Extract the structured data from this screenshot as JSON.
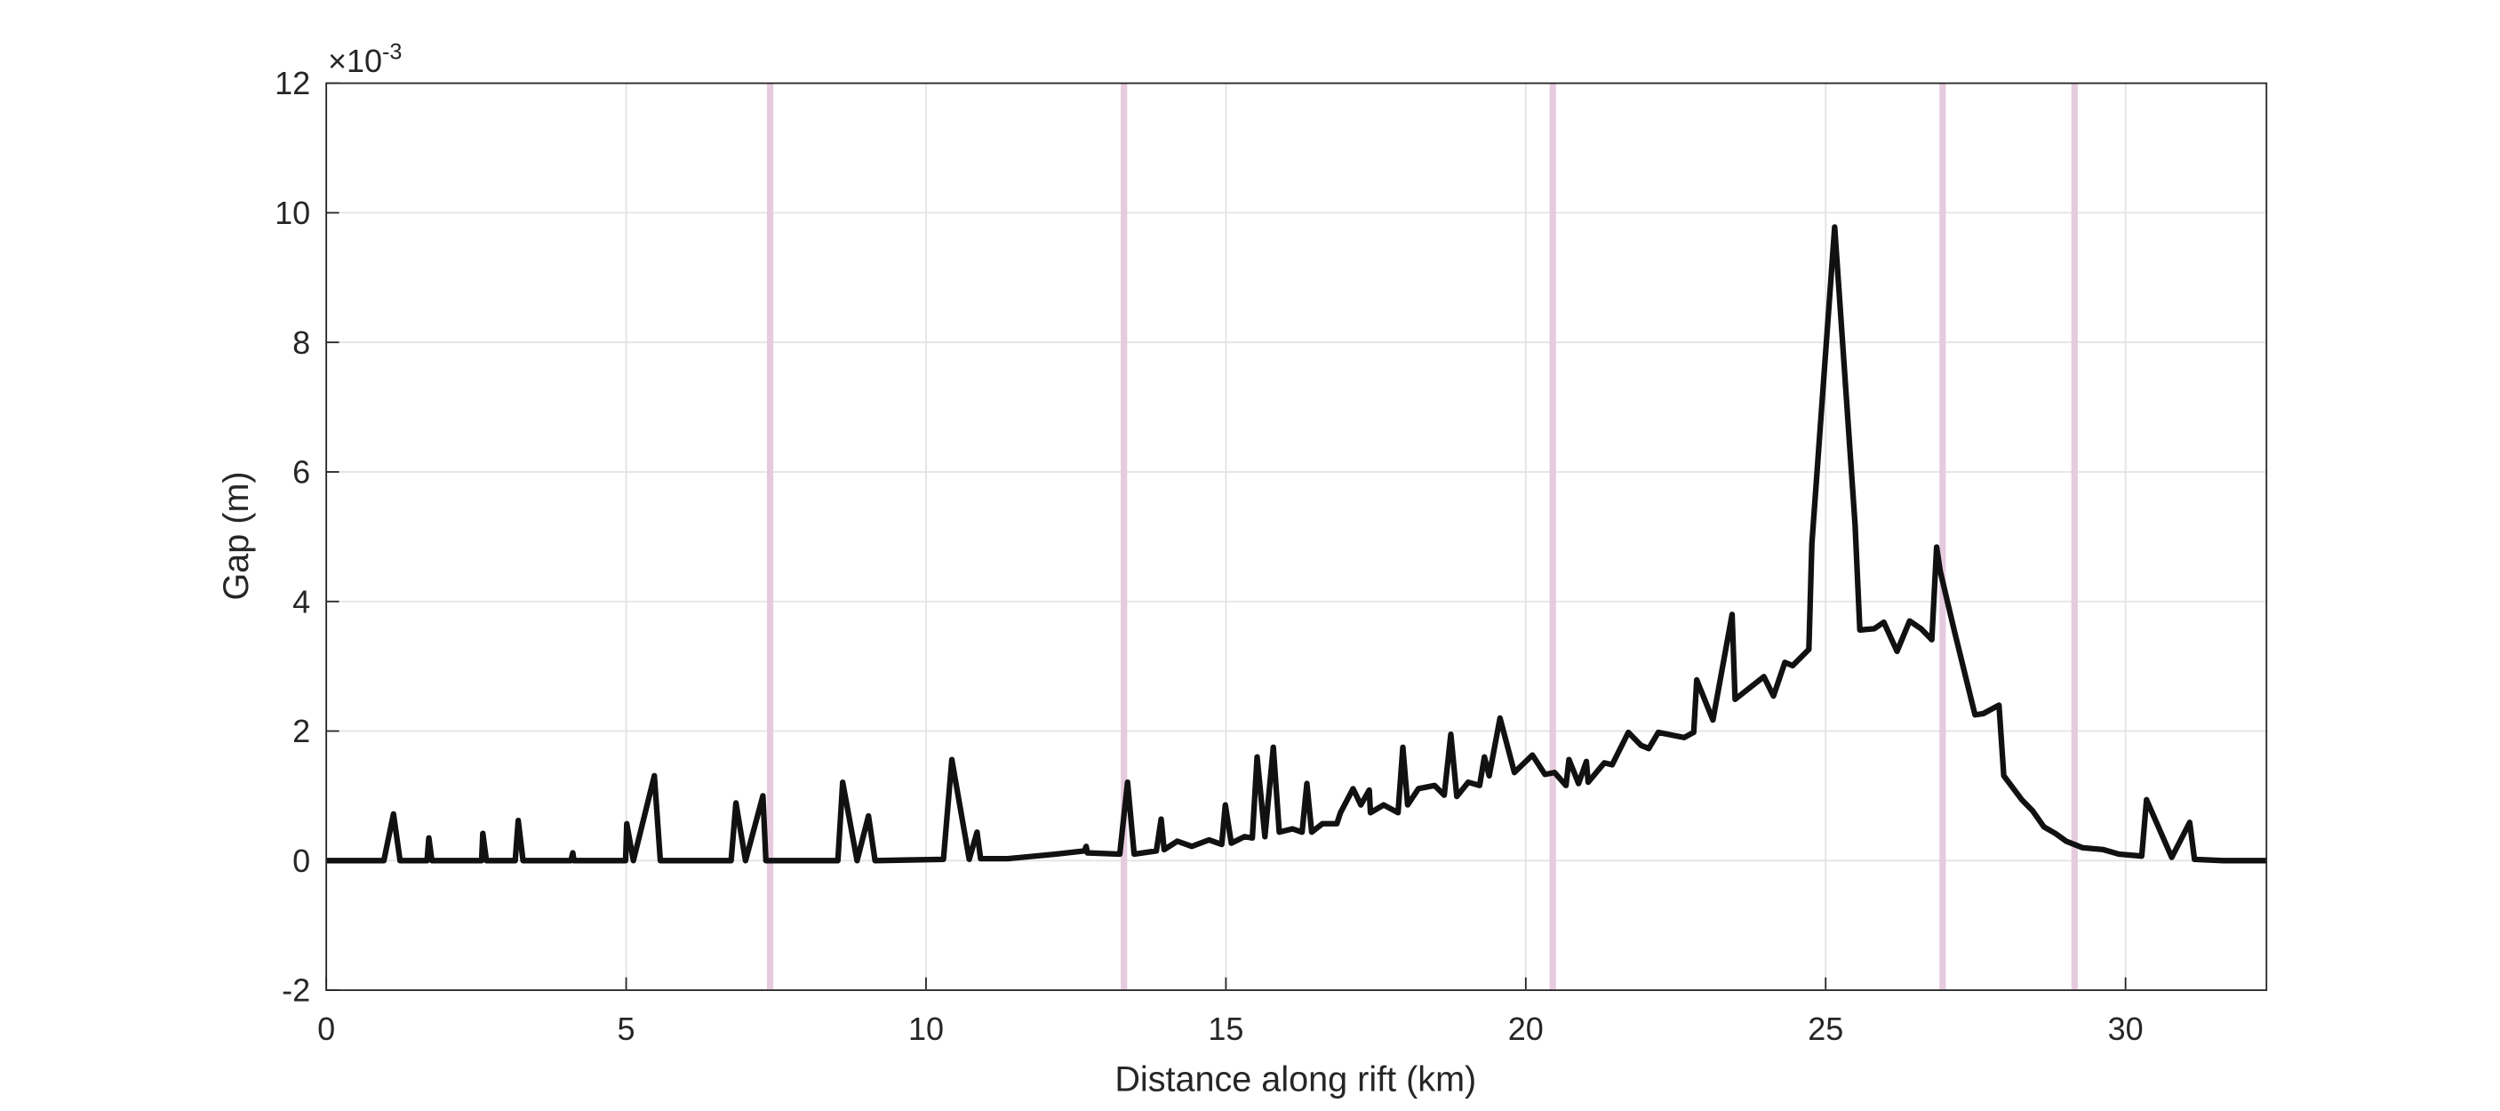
{
  "chart_data": {
    "type": "line",
    "xlabel": "Distance along rift (km)",
    "ylabel": "Gap (m)",
    "y_multiplier": {
      "base": "×10",
      "exponent": "-3"
    },
    "xlim": [
      0,
      32.35
    ],
    "ylim": [
      -2,
      12
    ],
    "xticks": [
      0,
      5,
      10,
      15,
      20,
      25,
      30
    ],
    "yticks": [
      -2,
      0,
      2,
      4,
      6,
      8,
      10,
      12
    ],
    "grid": true,
    "vlines": {
      "color": "#e6cade",
      "x": [
        7.4,
        13.3,
        20.45,
        26.95,
        29.15
      ]
    },
    "x": [
      0,
      0.96,
      1.12,
      1.23,
      1.68,
      1.71,
      1.76,
      2.59,
      2.61,
      2.67,
      3.15,
      3.2,
      3.28,
      4.08,
      4.11,
      4.13,
      4.99,
      5.01,
      5.12,
      5.47,
      5.57,
      6.75,
      6.83,
      6.99,
      7.28,
      7.33,
      8.53,
      8.61,
      8.85,
      9.04,
      9.15,
      10.29,
      10.43,
      10.72,
      10.85,
      10.91,
      11.36,
      12.16,
      12.64,
      12.67,
      12.69,
      13.23,
      13.36,
      13.47,
      13.84,
      13.92,
      13.97,
      14.19,
      14.43,
      14.72,
      14.93,
      14.99,
      15.09,
      15.31,
      15.44,
      15.52,
      15.65,
      15.79,
      15.89,
      16.11,
      16.27,
      16.35,
      16.43,
      16.61,
      16.85,
      16.91,
      17.12,
      17.25,
      17.39,
      17.41,
      17.63,
      17.87,
      17.95,
      18.03,
      18.21,
      18.48,
      18.64,
      18.75,
      18.85,
      19.04,
      19.23,
      19.31,
      19.39,
      19.57,
      19.81,
      20.11,
      20.32,
      20.48,
      20.67,
      20.72,
      20.88,
      21.01,
      21.04,
      21.31,
      21.44,
      21.71,
      21.92,
      22.05,
      22.21,
      22.64,
      22.8,
      22.85,
      23.12,
      23.44,
      23.49,
      23.97,
      24.13,
      24.32,
      24.45,
      24.72,
      24.77,
      25.15,
      25.49,
      25.57,
      25.81,
      25.97,
      26.19,
      26.4,
      26.59,
      26.77,
      26.85,
      26.91,
      27.15,
      27.49,
      27.63,
      27.89,
      27.97,
      28.27,
      28.45,
      28.64,
      28.83,
      29.01,
      29.28,
      29.63,
      29.89,
      30.27,
      30.35,
      30.77,
      31.07,
      31.15,
      31.63,
      32.35
    ],
    "series": [
      {
        "color": "#111111",
        "values": [
          0,
          0,
          0.72,
          0,
          0,
          0.35,
          0,
          0,
          0.42,
          0,
          0,
          0.62,
          0,
          0,
          0.12,
          0,
          0,
          0.57,
          0,
          1.31,
          0,
          0,
          0.89,
          0,
          1.0,
          0,
          0,
          1.21,
          0,
          0.69,
          0,
          0.02,
          1.56,
          0.02,
          0.44,
          0.03,
          0.03,
          0.1,
          0.15,
          0.22,
          0.12,
          0.1,
          1.21,
          0.1,
          0.15,
          0.64,
          0.17,
          0.3,
          0.22,
          0.32,
          0.25,
          0.86,
          0.27,
          0.37,
          0.35,
          1.6,
          0.37,
          1.75,
          0.44,
          0.49,
          0.44,
          1.19,
          0.44,
          0.57,
          0.57,
          0.74,
          1.11,
          0.86,
          1.09,
          0.74,
          0.86,
          0.74,
          1.75,
          0.86,
          1.11,
          1.16,
          1.01,
          1.95,
          0.99,
          1.21,
          1.16,
          1.6,
          1.31,
          2.2,
          1.36,
          1.63,
          1.33,
          1.36,
          1.16,
          1.56,
          1.19,
          1.53,
          1.21,
          1.51,
          1.48,
          1.98,
          1.78,
          1.73,
          1.98,
          1.9,
          1.98,
          2.79,
          2.17,
          3.8,
          2.49,
          2.84,
          2.54,
          3.06,
          3.01,
          3.26,
          4.89,
          9.78,
          5.19,
          3.56,
          3.58,
          3.68,
          3.23,
          3.7,
          3.58,
          3.41,
          4.84,
          4.47,
          3.53,
          2.25,
          2.27,
          2.4,
          1.31,
          0.94,
          0.77,
          0.52,
          0.42,
          0.3,
          0.2,
          0.17,
          0.1,
          0.07,
          0.94,
          0.05,
          0.59,
          0.02,
          0,
          0
        ]
      }
    ]
  }
}
